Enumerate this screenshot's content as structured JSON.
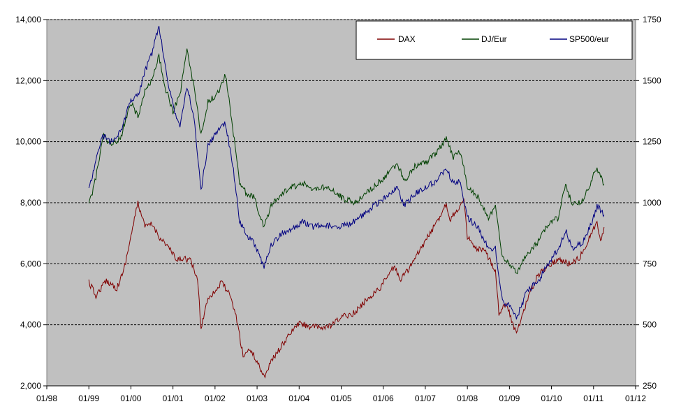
{
  "chart_data": {
    "type": "line",
    "x_axis": {
      "ticks": [
        "01/98",
        "01/99",
        "01/00",
        "01/01",
        "01/02",
        "01/03",
        "01/04",
        "01/05",
        "01/06",
        "01/07",
        "01/08",
        "01/09",
        "01/10",
        "01/11",
        "01/12"
      ]
    },
    "y_axis_left": {
      "range": [
        2000,
        14000
      ],
      "ticks": [
        "2,000",
        "4,000",
        "6,000",
        "8,000",
        "10,000",
        "12,000",
        "14,000"
      ],
      "values": [
        2000,
        4000,
        6000,
        8000,
        10000,
        12000,
        14000
      ]
    },
    "y_axis_right": {
      "range": [
        250,
        1750
      ],
      "ticks": [
        "250",
        "500",
        "750",
        "1000",
        "1250",
        "1500",
        "1750"
      ],
      "values": [
        250,
        500,
        750,
        1000,
        1250,
        1500,
        1750
      ]
    },
    "grid": "horizontal dashed",
    "legend_position": "top-right",
    "plot_background": "#c0c0c0",
    "series": [
      {
        "name": "DAX",
        "axis": "left",
        "color": "#800000",
        "points": [
          [
            "1999-01",
            5400
          ],
          [
            "1999-03",
            4950
          ],
          [
            "1999-06",
            5450
          ],
          [
            "1999-09",
            5200
          ],
          [
            "1999-11",
            5800
          ],
          [
            "2000-01",
            6900
          ],
          [
            "2000-03",
            8000
          ],
          [
            "2000-05",
            7200
          ],
          [
            "2000-07",
            7300
          ],
          [
            "2000-09",
            6900
          ],
          [
            "2000-12",
            6500
          ],
          [
            "2001-02",
            6100
          ],
          [
            "2001-04",
            6200
          ],
          [
            "2001-06",
            6100
          ],
          [
            "2001-08",
            5500
          ],
          [
            "2001-09",
            3900
          ],
          [
            "2001-11",
            4900
          ],
          [
            "2002-01",
            5100
          ],
          [
            "2002-03",
            5400
          ],
          [
            "2002-05",
            5000
          ],
          [
            "2002-07",
            4300
          ],
          [
            "2002-09",
            3000
          ],
          [
            "2002-11",
            3200
          ],
          [
            "2003-01",
            2800
          ],
          [
            "2003-03",
            2300
          ],
          [
            "2003-05",
            2800
          ],
          [
            "2003-08",
            3300
          ],
          [
            "2003-11",
            3800
          ],
          [
            "2004-01",
            4050
          ],
          [
            "2004-04",
            3950
          ],
          [
            "2004-07",
            3900
          ],
          [
            "2004-10",
            3950
          ],
          [
            "2005-01",
            4250
          ],
          [
            "2005-05",
            4400
          ],
          [
            "2005-08",
            4800
          ],
          [
            "2005-12",
            5200
          ],
          [
            "2006-04",
            5900
          ],
          [
            "2006-06",
            5500
          ],
          [
            "2006-09",
            5950
          ],
          [
            "2006-12",
            6550
          ],
          [
            "2007-04",
            7300
          ],
          [
            "2007-07",
            8000
          ],
          [
            "2007-08",
            7450
          ],
          [
            "2007-12",
            8050
          ],
          [
            "2008-01",
            6900
          ],
          [
            "2008-03",
            6500
          ],
          [
            "2008-06",
            6400
          ],
          [
            "2008-09",
            5800
          ],
          [
            "2008-10",
            4400
          ],
          [
            "2008-12",
            4700
          ],
          [
            "2009-03",
            3700
          ],
          [
            "2009-06",
            4800
          ],
          [
            "2009-09",
            5600
          ],
          [
            "2009-12",
            5950
          ],
          [
            "2010-03",
            6150
          ],
          [
            "2010-06",
            6000
          ],
          [
            "2010-09",
            6200
          ],
          [
            "2010-12",
            6900
          ],
          [
            "2011-02",
            7350
          ],
          [
            "2011-03",
            6700
          ],
          [
            "2011-04",
            7200
          ]
        ]
      },
      {
        "name": "DJ/Eur",
        "axis": "left",
        "color": "#004000",
        "points": [
          [
            "1999-01",
            7900
          ],
          [
            "1999-03",
            8800
          ],
          [
            "1999-05",
            10200
          ],
          [
            "1999-07",
            9900
          ],
          [
            "1999-10",
            10100
          ],
          [
            "2000-01",
            11300
          ],
          [
            "2000-03",
            10800
          ],
          [
            "2000-05",
            11700
          ],
          [
            "2000-07",
            12000
          ],
          [
            "2000-09",
            12800
          ],
          [
            "2000-11",
            11700
          ],
          [
            "2001-01",
            11000
          ],
          [
            "2001-03",
            11500
          ],
          [
            "2001-05",
            13000
          ],
          [
            "2001-07",
            11800
          ],
          [
            "2001-09",
            10200
          ],
          [
            "2001-11",
            11300
          ],
          [
            "2002-02",
            11600
          ],
          [
            "2002-04",
            12200
          ],
          [
            "2002-06",
            10500
          ],
          [
            "2002-08",
            8700
          ],
          [
            "2002-10",
            8300
          ],
          [
            "2002-12",
            8200
          ],
          [
            "2003-03",
            7200
          ],
          [
            "2003-05",
            7900
          ],
          [
            "2003-08",
            8300
          ],
          [
            "2003-11",
            8500
          ],
          [
            "2004-02",
            8650
          ],
          [
            "2004-05",
            8400
          ],
          [
            "2004-08",
            8500
          ],
          [
            "2004-11",
            8350
          ],
          [
            "2005-02",
            8100
          ],
          [
            "2005-05",
            8000
          ],
          [
            "2005-08",
            8300
          ],
          [
            "2005-11",
            8600
          ],
          [
            "2006-02",
            8900
          ],
          [
            "2006-05",
            9300
          ],
          [
            "2006-07",
            8700
          ],
          [
            "2006-10",
            9200
          ],
          [
            "2007-01",
            9300
          ],
          [
            "2007-04",
            9600
          ],
          [
            "2007-07",
            10100
          ],
          [
            "2007-09",
            9500
          ],
          [
            "2007-11",
            9700
          ],
          [
            "2008-01",
            8500
          ],
          [
            "2008-04",
            8200
          ],
          [
            "2008-07",
            7500
          ],
          [
            "2008-09",
            7900
          ],
          [
            "2008-11",
            6200
          ],
          [
            "2009-01",
            6000
          ],
          [
            "2009-03",
            5700
          ],
          [
            "2009-06",
            6300
          ],
          [
            "2009-09",
            6700
          ],
          [
            "2009-12",
            7300
          ],
          [
            "2010-03",
            7500
          ],
          [
            "2010-05",
            8600
          ],
          [
            "2010-07",
            7900
          ],
          [
            "2010-10",
            8100
          ],
          [
            "2011-01",
            8900
          ],
          [
            "2011-02",
            9100
          ],
          [
            "2011-04",
            8600
          ]
        ]
      },
      {
        "name": "SP500/eur",
        "axis": "left",
        "color": "#000080",
        "points": [
          [
            "1999-01",
            8400
          ],
          [
            "1999-03",
            9400
          ],
          [
            "1999-05",
            10200
          ],
          [
            "1999-07",
            10000
          ],
          [
            "1999-10",
            10300
          ],
          [
            "2000-01",
            11400
          ],
          [
            "2000-03",
            11500
          ],
          [
            "2000-05",
            12300
          ],
          [
            "2000-07",
            12900
          ],
          [
            "2000-09",
            13800
          ],
          [
            "2000-11",
            12300
          ],
          [
            "2001-01",
            11200
          ],
          [
            "2001-03",
            10500
          ],
          [
            "2001-05",
            11800
          ],
          [
            "2001-07",
            10800
          ],
          [
            "2001-09",
            8400
          ],
          [
            "2001-11",
            9900
          ],
          [
            "2002-02",
            10400
          ],
          [
            "2002-04",
            10600
          ],
          [
            "2002-06",
            9300
          ],
          [
            "2002-08",
            7400
          ],
          [
            "2002-10",
            6900
          ],
          [
            "2002-12",
            6700
          ],
          [
            "2003-03",
            5900
          ],
          [
            "2003-05",
            6600
          ],
          [
            "2003-08",
            7000
          ],
          [
            "2003-11",
            7100
          ],
          [
            "2004-02",
            7400
          ],
          [
            "2004-05",
            7200
          ],
          [
            "2004-08",
            7300
          ],
          [
            "2004-11",
            7200
          ],
          [
            "2005-02",
            7250
          ],
          [
            "2005-05",
            7400
          ],
          [
            "2005-08",
            7700
          ],
          [
            "2005-11",
            7950
          ],
          [
            "2006-02",
            8200
          ],
          [
            "2006-05",
            8500
          ],
          [
            "2006-07",
            7900
          ],
          [
            "2006-10",
            8300
          ],
          [
            "2007-01",
            8500
          ],
          [
            "2007-04",
            8700
          ],
          [
            "2007-07",
            9100
          ],
          [
            "2007-09",
            8600
          ],
          [
            "2007-11",
            8700
          ],
          [
            "2008-01",
            7500
          ],
          [
            "2008-04",
            7200
          ],
          [
            "2008-07",
            6500
          ],
          [
            "2008-09",
            6500
          ],
          [
            "2008-11",
            4800
          ],
          [
            "2009-01",
            4600
          ],
          [
            "2009-03",
            4200
          ],
          [
            "2009-06",
            5100
          ],
          [
            "2009-09",
            5400
          ],
          [
            "2009-12",
            6000
          ],
          [
            "2010-03",
            6500
          ],
          [
            "2010-05",
            7100
          ],
          [
            "2010-07",
            6500
          ],
          [
            "2010-10",
            6700
          ],
          [
            "2011-01",
            7500
          ],
          [
            "2011-02",
            7900
          ],
          [
            "2011-04",
            7600
          ]
        ]
      }
    ]
  }
}
